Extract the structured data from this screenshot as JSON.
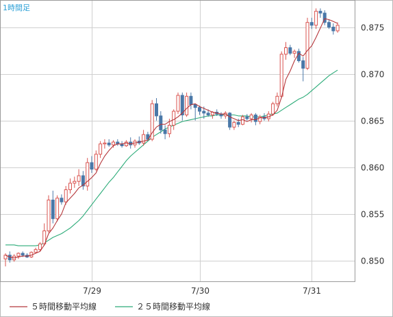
{
  "timeframe_label": "1時間足",
  "colors": {
    "up_candle": "#d9534f",
    "down_candle": "#4a78a8",
    "ma5": "#b5363a",
    "ma25": "#2bab78",
    "grid": "#cfcfcf",
    "axis_text": "#333333",
    "timeframe_text": "#2a9fd6"
  },
  "chart_data": {
    "type": "candlestick",
    "xlabel": "",
    "ylabel": "",
    "ylim": [
      0.8478,
      0.8779
    ],
    "y_ticks": [
      0.85,
      0.855,
      0.86,
      0.865,
      0.87,
      0.875
    ],
    "y_tick_labels": [
      "0.850",
      "0.855",
      "0.860",
      "0.865",
      "0.870",
      "0.875"
    ],
    "x_ticks": [
      {
        "label": "7/29",
        "index": 20
      },
      {
        "label": "7/30",
        "index": 45
      },
      {
        "label": "7/31",
        "index": 71
      }
    ],
    "grid": true,
    "candles": [
      [
        0.8502,
        0.8508,
        0.8494,
        0.8506
      ],
      [
        0.8506,
        0.851,
        0.8498,
        0.8501
      ],
      [
        0.8501,
        0.8507,
        0.8499,
        0.8505
      ],
      [
        0.8505,
        0.8509,
        0.8502,
        0.8508
      ],
      [
        0.8508,
        0.851,
        0.8504,
        0.8506
      ],
      [
        0.8506,
        0.8508,
        0.8503,
        0.8504
      ],
      [
        0.8504,
        0.851,
        0.8503,
        0.8509
      ],
      [
        0.8509,
        0.8514,
        0.8508,
        0.8512
      ],
      [
        0.8512,
        0.852,
        0.851,
        0.8518
      ],
      [
        0.8518,
        0.854,
        0.8516,
        0.8532
      ],
      [
        0.8532,
        0.857,
        0.853,
        0.8565
      ],
      [
        0.8565,
        0.8575,
        0.854,
        0.8545
      ],
      [
        0.8545,
        0.857,
        0.8542,
        0.8567
      ],
      [
        0.8567,
        0.8571,
        0.856,
        0.8563
      ],
      [
        0.8563,
        0.858,
        0.856,
        0.8576
      ],
      [
        0.8576,
        0.8588,
        0.8572,
        0.8583
      ],
      [
        0.8583,
        0.859,
        0.8578,
        0.8585
      ],
      [
        0.8585,
        0.8598,
        0.858,
        0.8591
      ],
      [
        0.8591,
        0.8596,
        0.8576,
        0.858
      ],
      [
        0.858,
        0.861,
        0.8575,
        0.8605
      ],
      [
        0.8605,
        0.8612,
        0.8594,
        0.8598
      ],
      [
        0.8598,
        0.8618,
        0.8596,
        0.8614
      ],
      [
        0.8614,
        0.8628,
        0.861,
        0.8625
      ],
      [
        0.8625,
        0.863,
        0.862,
        0.8626
      ],
      [
        0.8626,
        0.863,
        0.8622,
        0.8624
      ],
      [
        0.8624,
        0.8629,
        0.8621,
        0.8627
      ],
      [
        0.8627,
        0.863,
        0.8623,
        0.8625
      ],
      [
        0.8625,
        0.8628,
        0.8621,
        0.8623
      ],
      [
        0.8623,
        0.8629,
        0.8622,
        0.8627
      ],
      [
        0.8627,
        0.8632,
        0.862,
        0.8624
      ],
      [
        0.8624,
        0.863,
        0.8621,
        0.8628
      ],
      [
        0.8628,
        0.8633,
        0.8624,
        0.8626
      ],
      [
        0.8626,
        0.864,
        0.8623,
        0.8635
      ],
      [
        0.8635,
        0.8638,
        0.8628,
        0.863
      ],
      [
        0.863,
        0.8672,
        0.8628,
        0.8668
      ],
      [
        0.8668,
        0.8674,
        0.865,
        0.8655
      ],
      [
        0.8655,
        0.866,
        0.8636,
        0.864
      ],
      [
        0.864,
        0.8645,
        0.863,
        0.8636
      ],
      [
        0.8636,
        0.8652,
        0.8632,
        0.8645
      ],
      [
        0.8645,
        0.8662,
        0.864,
        0.866
      ],
      [
        0.866,
        0.868,
        0.8657,
        0.8677
      ],
      [
        0.8677,
        0.868,
        0.865,
        0.8656
      ],
      [
        0.8656,
        0.868,
        0.8654,
        0.8676
      ],
      [
        0.8676,
        0.868,
        0.8662,
        0.8667
      ],
      [
        0.8667,
        0.8668,
        0.865,
        0.8664
      ],
      [
        0.8664,
        0.8666,
        0.8656,
        0.866
      ],
      [
        0.866,
        0.8665,
        0.8652,
        0.8658
      ],
      [
        0.8658,
        0.8662,
        0.8654,
        0.8656
      ],
      [
        0.8656,
        0.866,
        0.8652,
        0.8659
      ],
      [
        0.8659,
        0.8662,
        0.8655,
        0.8657
      ],
      [
        0.8657,
        0.8659,
        0.8652,
        0.8655
      ],
      [
        0.8655,
        0.866,
        0.8652,
        0.8658
      ],
      [
        0.8658,
        0.8659,
        0.864,
        0.8643
      ],
      [
        0.8643,
        0.865,
        0.864,
        0.8648
      ],
      [
        0.8648,
        0.8652,
        0.8643,
        0.8646
      ],
      [
        0.8646,
        0.8656,
        0.8645,
        0.8654
      ],
      [
        0.8654,
        0.8657,
        0.865,
        0.8652
      ],
      [
        0.8652,
        0.8658,
        0.8648,
        0.8656
      ],
      [
        0.8656,
        0.8658,
        0.8645,
        0.8649
      ],
      [
        0.8649,
        0.8656,
        0.8646,
        0.8654
      ],
      [
        0.8654,
        0.8658,
        0.865,
        0.8652
      ],
      [
        0.8652,
        0.866,
        0.8649,
        0.8657
      ],
      [
        0.8657,
        0.867,
        0.8655,
        0.8668
      ],
      [
        0.8668,
        0.868,
        0.8665,
        0.8676
      ],
      [
        0.8676,
        0.8724,
        0.8674,
        0.8721
      ],
      [
        0.8721,
        0.8734,
        0.8715,
        0.8728
      ],
      [
        0.8728,
        0.8731,
        0.872,
        0.8722
      ],
      [
        0.8722,
        0.8726,
        0.8717,
        0.8724
      ],
      [
        0.8724,
        0.8727,
        0.8712,
        0.8714
      ],
      [
        0.8714,
        0.8718,
        0.8692,
        0.8706
      ],
      [
        0.8706,
        0.876,
        0.8704,
        0.8755
      ],
      [
        0.8755,
        0.876,
        0.8748,
        0.8752
      ],
      [
        0.8752,
        0.877,
        0.8748,
        0.8767
      ],
      [
        0.8767,
        0.877,
        0.876,
        0.8765
      ],
      [
        0.8765,
        0.8768,
        0.8752,
        0.8755
      ],
      [
        0.8755,
        0.8758,
        0.8748,
        0.875
      ],
      [
        0.875,
        0.8754,
        0.8742,
        0.8746
      ],
      [
        0.8746,
        0.8755,
        0.8744,
        0.8752
      ]
    ],
    "series": [
      {
        "name": "５時間移動平均線",
        "values": [
          0.8506,
          0.8504,
          0.8503,
          0.8504,
          0.8505,
          0.8505,
          0.8506,
          0.8508,
          0.851,
          0.8517,
          0.8529,
          0.8535,
          0.8543,
          0.855,
          0.8562,
          0.8567,
          0.8572,
          0.8578,
          0.8581,
          0.8585,
          0.8589,
          0.8594,
          0.8604,
          0.8612,
          0.8618,
          0.8623,
          0.8625,
          0.8625,
          0.8626,
          0.8625,
          0.8626,
          0.8627,
          0.8628,
          0.8629,
          0.8637,
          0.8643,
          0.8646,
          0.8646,
          0.8649,
          0.8651,
          0.8654,
          0.8658,
          0.8663,
          0.8667,
          0.8668,
          0.8665,
          0.8663,
          0.8661,
          0.8659,
          0.8658,
          0.8657,
          0.8657,
          0.8654,
          0.8652,
          0.865,
          0.8651,
          0.8649,
          0.8651,
          0.8651,
          0.8653,
          0.8653,
          0.8654,
          0.8656,
          0.8661,
          0.8675,
          0.8694,
          0.8703,
          0.8714,
          0.8722,
          0.8719,
          0.8725,
          0.873,
          0.8739,
          0.8749,
          0.8759,
          0.8758,
          0.8756,
          0.8754
        ]
      },
      {
        "name": "２５時間移動平均線",
        "values": [
          0.8517,
          0.8517,
          0.8517,
          0.8516,
          0.8516,
          0.8516,
          0.8516,
          0.8516,
          0.8517,
          0.8519,
          0.8522,
          0.8525,
          0.8527,
          0.8529,
          0.8532,
          0.8535,
          0.8539,
          0.8543,
          0.8548,
          0.8554,
          0.856,
          0.8566,
          0.8572,
          0.8578,
          0.8584,
          0.8589,
          0.8595,
          0.8601,
          0.8607,
          0.8612,
          0.8616,
          0.862,
          0.8624,
          0.8628,
          0.8632,
          0.8635,
          0.8638,
          0.8641,
          0.8643,
          0.8645,
          0.8647,
          0.8649,
          0.865,
          0.8651,
          0.8652,
          0.8653,
          0.8654,
          0.8655,
          0.8655,
          0.8656,
          0.8656,
          0.8656,
          0.8656,
          0.8656,
          0.8655,
          0.8655,
          0.8655,
          0.8654,
          0.8654,
          0.8654,
          0.8655,
          0.8656,
          0.8657,
          0.8658,
          0.8661,
          0.8664,
          0.8667,
          0.867,
          0.8673,
          0.8675,
          0.8678,
          0.8682,
          0.8686,
          0.869,
          0.8694,
          0.8698,
          0.8701,
          0.8704
        ]
      }
    ]
  },
  "legend": {
    "ma5_label": "５時間移動平均線",
    "ma25_label": "２５時間移動平均線"
  }
}
